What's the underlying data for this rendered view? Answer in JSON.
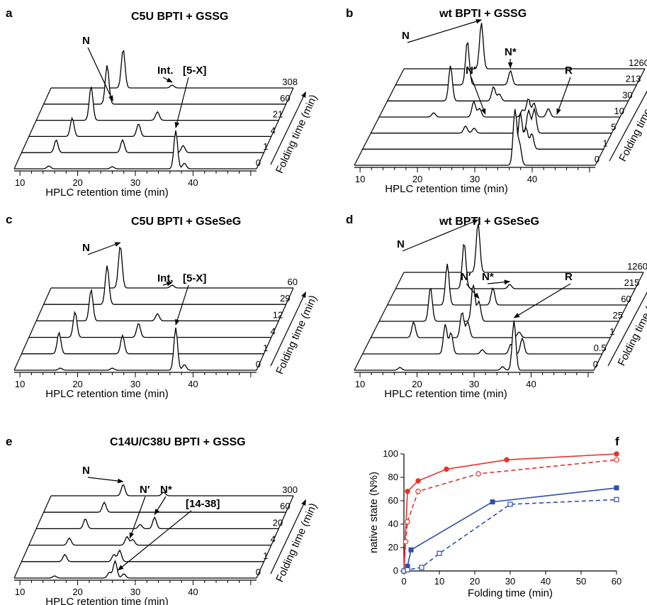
{
  "panels": [
    {
      "id": "a",
      "title": "C5U BPTI + GSSG",
      "axis_label": "HPLC retention time (min)",
      "depth_label": "Folding time (min)",
      "x_ticks": [
        "10",
        "20",
        "30",
        "40"
      ],
      "times": [
        "0",
        "1",
        "4",
        "21",
        "60",
        "308"
      ],
      "annotations": [
        {
          "label": "N",
          "x": 21,
          "trace": "60"
        },
        {
          "label": "Int.",
          "x": 30,
          "trace": "308"
        },
        {
          "label": "[5-X]",
          "x": 37,
          "trace": "0"
        }
      ],
      "chart_data": {
        "type": "line",
        "title": "C5U BPTI + GSSG",
        "xlabel": "HPLC retention time (min)",
        "zlabel": "Folding time (min)",
        "xlim": [
          9,
          51
        ],
        "series": [
          {
            "name": "0",
            "peaks": [
              [
                15,
                4
              ],
              [
                26,
                3
              ],
              [
                37,
                54
              ],
              [
                38.5,
                8
              ]
            ]
          },
          {
            "name": "1",
            "peaks": [
              [
                15,
                18
              ],
              [
                26.5,
                18
              ],
              [
                37,
                10
              ]
            ]
          },
          {
            "name": "4",
            "peaks": [
              [
                16.5,
                26
              ],
              [
                28,
                18
              ]
            ]
          },
          {
            "name": "21",
            "peaks": [
              [
                18.5,
                48
              ],
              [
                30,
                12
              ]
            ]
          },
          {
            "name": "60",
            "peaks": [
              [
                20,
                55
              ]
            ]
          },
          {
            "name": "308",
            "peaks": [
              [
                21.5,
                55
              ],
              [
                30,
                4
              ]
            ]
          }
        ]
      }
    },
    {
      "id": "b",
      "title": "wt BPTI + GSSG",
      "axis_label": "HPLC retention time (min)",
      "depth_label": "Folding time (min)",
      "x_ticks": [
        "10",
        "20",
        "30",
        "40"
      ],
      "times": [
        "0",
        "1",
        "5",
        "10",
        "30",
        "213",
        "1260"
      ],
      "annotations": [
        {
          "label": "N",
          "x": 22.5,
          "trace": "1260"
        },
        {
          "label": "N′",
          "x": 27.5,
          "trace": "10"
        },
        {
          "label": "N*",
          "x": 29,
          "trace": "213"
        },
        {
          "label": "R",
          "x": 40,
          "trace": "10"
        }
      ],
      "chart_data": {
        "type": "line",
        "title": "wt BPTI + GSSG",
        "xlabel": "HPLC retention time (min)",
        "zlabel": "Folding time (min)",
        "xlim": [
          9,
          51
        ],
        "series": [
          {
            "name": "0",
            "peaks": [
              [
                37,
                78
              ],
              [
                37.8,
                30
              ]
            ]
          },
          {
            "name": "1",
            "peaks": [
              [
                36.5,
                52
              ],
              [
                37.5,
                30
              ],
              [
                38.5,
                22
              ]
            ]
          },
          {
            "name": "5",
            "peaks": [
              [
                25.5,
                10
              ],
              [
                27,
                7
              ],
              [
                35,
                12
              ],
              [
                36.5,
                32
              ],
              [
                37.5,
                34
              ]
            ]
          },
          {
            "name": "10",
            "peaks": [
              [
                18.5,
                6
              ],
              [
                25.5,
                22
              ],
              [
                26.5,
                12
              ],
              [
                34,
                10
              ],
              [
                35,
                26
              ],
              [
                36,
                20
              ],
              [
                38.5,
                12
              ]
            ]
          },
          {
            "name": "30",
            "peaks": [
              [
                20,
                50
              ],
              [
                27.5,
                20
              ],
              [
                28.5,
                10
              ]
            ]
          },
          {
            "name": "213",
            "peaks": [
              [
                21.5,
                62
              ],
              [
                29,
                20
              ]
            ]
          },
          {
            "name": "1260",
            "peaks": [
              [
                22.5,
                65
              ]
            ]
          }
        ]
      }
    },
    {
      "id": "c",
      "title": "C5U BPTI + GSeSeG",
      "axis_label": "HPLC retention time (min)",
      "depth_label": "Folding time (min)",
      "x_ticks": [
        "10",
        "20",
        "30",
        "40"
      ],
      "times": [
        "0",
        "1",
        "4",
        "12",
        "29",
        "60"
      ],
      "annotations": [
        {
          "label": "N",
          "x": 21,
          "trace": "60"
        },
        {
          "label": "Int.",
          "x": 30,
          "trace": "60"
        },
        {
          "label": "[5-X]",
          "x": 37,
          "trace": "0"
        }
      ],
      "chart_data": {
        "type": "line",
        "title": "C5U BPTI + GSeSeG",
        "xlabel": "HPLC retention time (min)",
        "zlabel": "Folding time (min)",
        "xlim": [
          9,
          51
        ],
        "series": [
          {
            "name": "0",
            "peaks": [
              [
                17,
                3
              ],
              [
                26,
                3
              ],
              [
                37,
                60
              ],
              [
                38.5,
                8
              ]
            ]
          },
          {
            "name": "1",
            "peaks": [
              [
                15.5,
                30
              ],
              [
                26.5,
                26
              ]
            ]
          },
          {
            "name": "4",
            "peaks": [
              [
                17,
                36
              ],
              [
                28,
                20
              ]
            ]
          },
          {
            "name": "12",
            "peaks": [
              [
                18.5,
                44
              ],
              [
                30,
                10
              ]
            ]
          },
          {
            "name": "29",
            "peaks": [
              [
                20,
                55
              ]
            ]
          },
          {
            "name": "60",
            "peaks": [
              [
                21,
                60
              ],
              [
                30,
                4
              ]
            ]
          }
        ]
      }
    },
    {
      "id": "d",
      "title": "wt BPTI + GSeSeG",
      "axis_label": "HPLC retention time (min)",
      "depth_label": "Folding time (min)",
      "x_ticks": [
        "10",
        "20",
        "30",
        "40"
      ],
      "times": [
        "0",
        "0.5",
        "1",
        "25",
        "60",
        "215",
        "1260"
      ],
      "annotations": [
        {
          "label": "N",
          "x": 22,
          "trace": "1260"
        },
        {
          "label": "N′",
          "x": 26.5,
          "trace": "25"
        },
        {
          "label": "N*",
          "x": 29,
          "trace": "215"
        },
        {
          "label": "R",
          "x": 37,
          "trace": "0"
        }
      ],
      "chart_data": {
        "type": "line",
        "title": "wt BPTI + GSeSeG",
        "xlabel": "HPLC retention time (min)",
        "zlabel": "Folding time (min)",
        "xlim": [
          9,
          51
        ],
        "series": [
          {
            "name": "0",
            "peaks": [
              [
                17,
                4
              ],
              [
                37,
                70
              ],
              [
                35,
                5
              ]
            ]
          },
          {
            "name": "0.5",
            "peaks": [
              [
                23.5,
                42
              ],
              [
                24.5,
                30
              ],
              [
                30,
                6
              ],
              [
                35,
                14
              ],
              [
                37,
                22
              ]
            ]
          },
          {
            "name": "1",
            "peaks": [
              [
                16.5,
                22
              ],
              [
                25,
                36
              ],
              [
                26,
                22
              ],
              [
                35,
                8
              ]
            ]
          },
          {
            "name": "25",
            "peaks": [
              [
                18,
                48
              ],
              [
                25.5,
                52
              ],
              [
                26.5,
                28
              ]
            ]
          },
          {
            "name": "60",
            "peaks": [
              [
                19.5,
                58
              ],
              [
                27.5,
                24
              ]
            ]
          },
          {
            "name": "215",
            "peaks": [
              [
                21,
                65
              ],
              [
                29,
                6
              ]
            ]
          },
          {
            "name": "1260",
            "peaks": [
              [
                22,
                70
              ]
            ]
          }
        ]
      }
    },
    {
      "id": "e",
      "title": "C14U/C38U BPTI + GSSG",
      "axis_label": "HPLC retention time (min)",
      "depth_label": "Folding time (min)",
      "x_ticks": [
        "10",
        "20",
        "30",
        "40"
      ],
      "times": [
        "0",
        "1",
        "4",
        "20",
        "60",
        "300"
      ],
      "annotations": [
        {
          "label": "N",
          "x": 21.5,
          "trace": "300"
        },
        {
          "label": "N′",
          "x": 26.5,
          "trace": "4"
        },
        {
          "label": "N*",
          "x": 29.5,
          "trace": "20"
        },
        {
          "label": "[14-38]",
          "x": 27,
          "trace": "0"
        }
      ],
      "chart_data": {
        "type": "line",
        "title": "C14U/C38U BPTI + GSSG",
        "xlabel": "HPLC retention time (min)",
        "zlabel": "Folding time (min)",
        "xlim": [
          9,
          51
        ],
        "series": [
          {
            "name": "0",
            "peaks": [
              [
                16,
                3
              ],
              [
                25.5,
                8
              ],
              [
                26.5,
                24
              ],
              [
                28,
                6
              ]
            ]
          },
          {
            "name": "1",
            "peaks": [
              [
                16.5,
                10
              ],
              [
                25,
                10
              ],
              [
                26,
                16
              ]
            ]
          },
          {
            "name": "4",
            "peaks": [
              [
                16,
                10
              ],
              [
                26,
                12
              ],
              [
                27,
                8
              ]
            ]
          },
          {
            "name": "20",
            "peaks": [
              [
                17.5,
                14
              ],
              [
                27,
                6
              ],
              [
                29.5,
                16
              ]
            ]
          },
          {
            "name": "60",
            "peaks": [
              [
                19.5,
                14
              ]
            ]
          },
          {
            "name": "300",
            "peaks": [
              [
                21.5,
                16
              ],
              [
                28.5,
                5
              ]
            ]
          }
        ]
      }
    }
  ],
  "panel_f": {
    "id": "f",
    "chart_data": {
      "type": "line",
      "title": "",
      "xlabel": "Folding time (min)",
      "ylabel": "native state (N%)",
      "xlim": [
        0,
        60
      ],
      "ylim": [
        0,
        100
      ],
      "x_ticks": [
        "0",
        "10",
        "20",
        "30",
        "40",
        "50",
        "60"
      ],
      "y_ticks": [
        "0",
        "20",
        "40",
        "60",
        "80",
        "100"
      ],
      "series": [
        {
          "color": "#e8322b",
          "style": "solid",
          "marker": "filled-circle",
          "x": [
            0,
            1,
            4,
            12,
            29,
            60
          ],
          "y": [
            0,
            68,
            77,
            87,
            95,
            100
          ]
        },
        {
          "color": "#e8322b",
          "style": "dashed",
          "marker": "open-circle",
          "x": [
            0,
            0.5,
            1,
            4,
            21,
            60
          ],
          "y": [
            0,
            25,
            42,
            68,
            83,
            95
          ]
        },
        {
          "color": "#2e4fa8",
          "style": "solid",
          "marker": "filled-square",
          "x": [
            0,
            1,
            2,
            25,
            60
          ],
          "y": [
            0,
            4,
            18,
            59,
            71
          ]
        },
        {
          "color": "#2e4fa8",
          "style": "dashed",
          "marker": "open-square",
          "x": [
            0,
            1,
            5,
            10,
            30,
            60
          ],
          "y": [
            0,
            1,
            3,
            15,
            57,
            61
          ]
        }
      ]
    }
  }
}
